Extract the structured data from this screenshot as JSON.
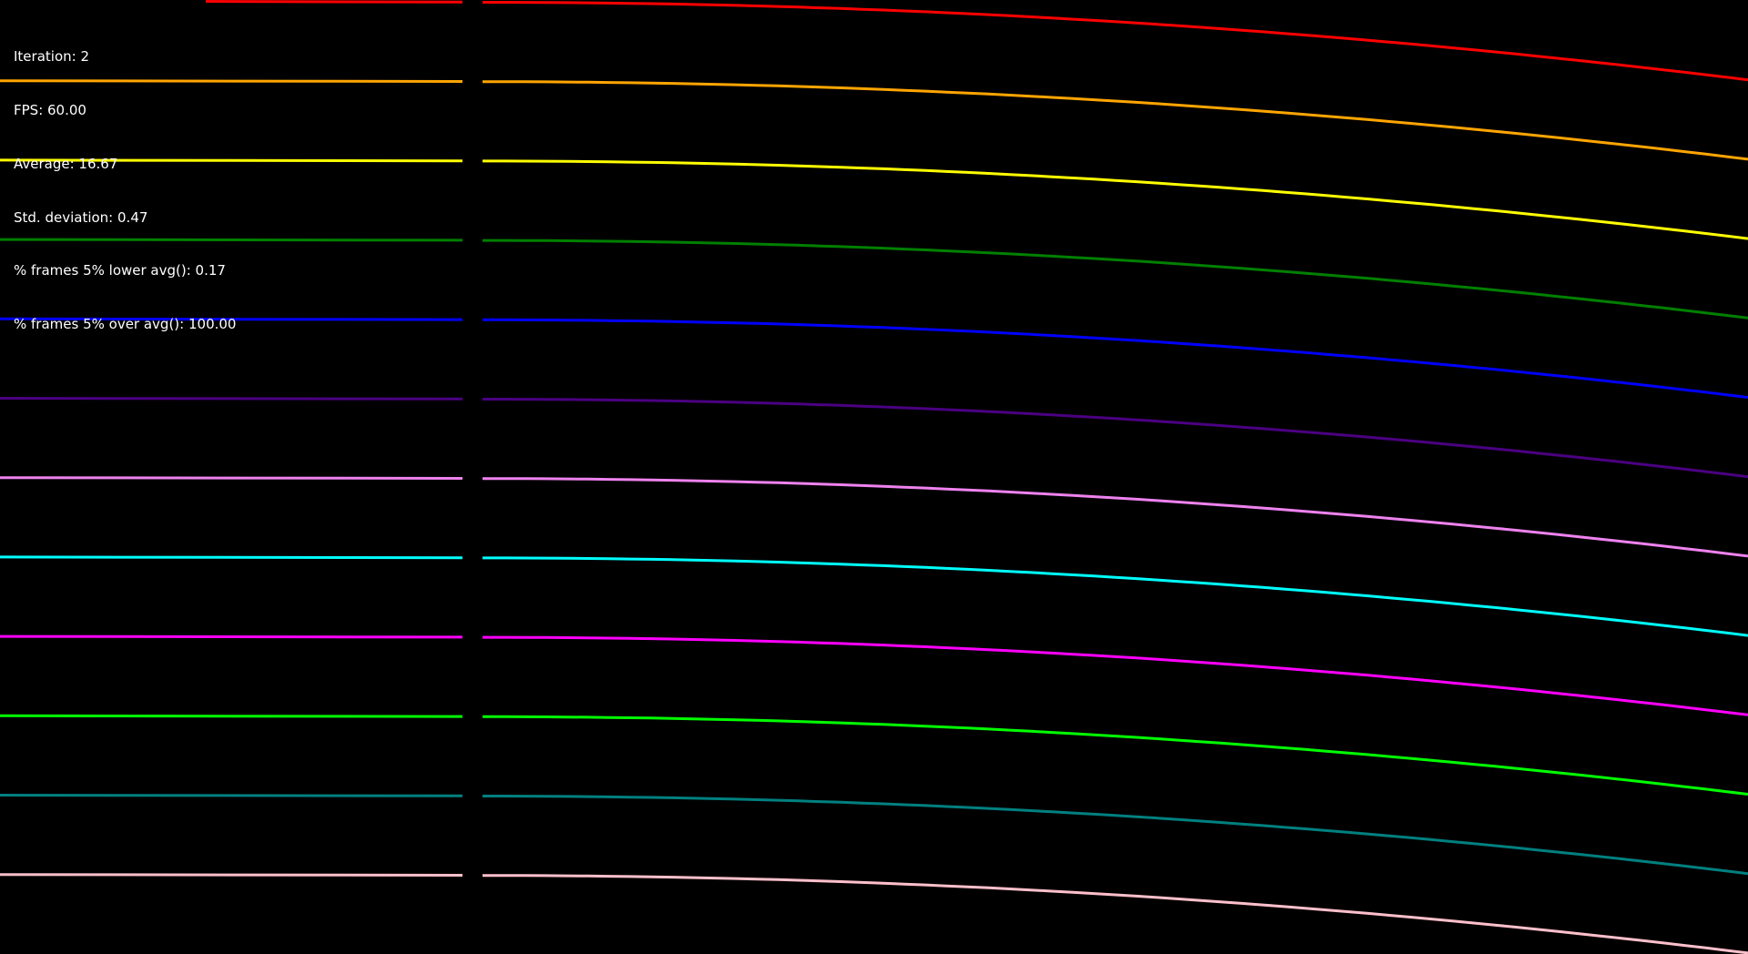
{
  "stats": {
    "iteration": "Iteration: 2",
    "fps": "FPS: 60.00",
    "average": "Average: 16.67",
    "std_deviation": "Std. deviation: 0.47",
    "frames_lower": "% frames 5% lower avg(): 0.17",
    "frames_over": "% frames 5% over avg(): 100.00"
  },
  "lines": [
    {
      "color": "#ff0000"
    },
    {
      "color": "#ffa500"
    },
    {
      "color": "#ffff00"
    },
    {
      "color": "#008000"
    },
    {
      "color": "#0000ff"
    },
    {
      "color": "#4b0082"
    },
    {
      "color": "#ee82ee"
    },
    {
      "color": "#00ffff"
    },
    {
      "color": "#ff00ff"
    },
    {
      "color": "#00ff00"
    },
    {
      "color": "#008080"
    },
    {
      "color": "#ffc0cb"
    }
  ],
  "background": "#000000"
}
